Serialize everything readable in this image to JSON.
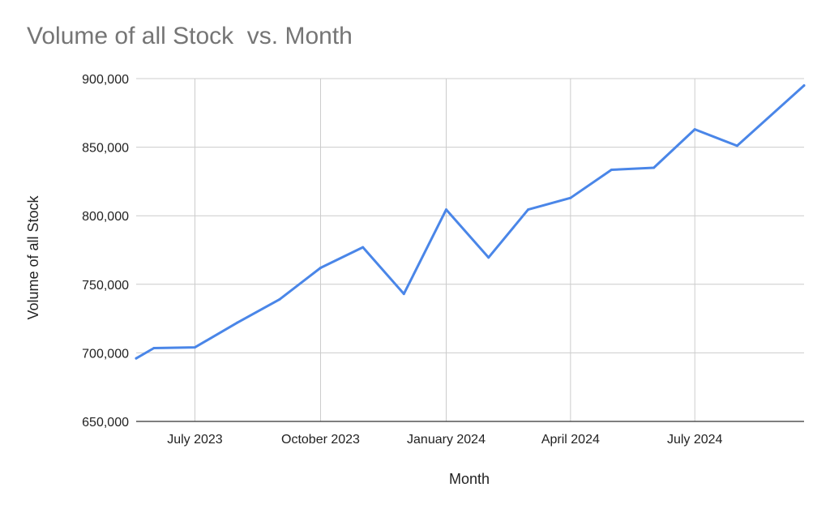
{
  "chart_data": {
    "type": "line",
    "title": "Volume of all Stock  vs. Month",
    "xlabel": "Month",
    "ylabel": "Volume of all Stock",
    "ylim": [
      650000,
      900000
    ],
    "xlim": [
      "2023-05-19",
      "2024-09-19"
    ],
    "grid": true,
    "legend": "none",
    "y_ticks": [
      650000,
      700000,
      750000,
      800000,
      850000,
      900000
    ],
    "y_tick_labels": [
      "650,000",
      "700,000",
      "750,000",
      "800,000",
      "850,000",
      "900,000"
    ],
    "x_ticks": [
      "2023-07-01",
      "2023-10-01",
      "2024-01-01",
      "2024-04-01",
      "2024-07-01"
    ],
    "x_tick_labels": [
      "July 2023",
      "October 2023",
      "January 2024",
      "April 2024",
      "July 2024"
    ],
    "series": [
      {
        "color": "#4a86e8",
        "x": [
          "2023-05-19",
          "2023-06-01",
          "2023-07-01",
          "2023-08-01",
          "2023-09-01",
          "2023-10-01",
          "2023-11-01",
          "2023-12-01",
          "2024-01-01",
          "2024-02-01",
          "2024-03-01",
          "2024-04-01",
          "2024-05-01",
          "2024-06-01",
          "2024-07-01",
          "2024-08-01",
          "2024-09-19"
        ],
        "values": [
          696000,
          703500,
          704000,
          722000,
          739000,
          762000,
          777000,
          743000,
          804500,
          769500,
          804500,
          813000,
          833500,
          835000,
          863000,
          851000,
          895000
        ]
      }
    ]
  }
}
